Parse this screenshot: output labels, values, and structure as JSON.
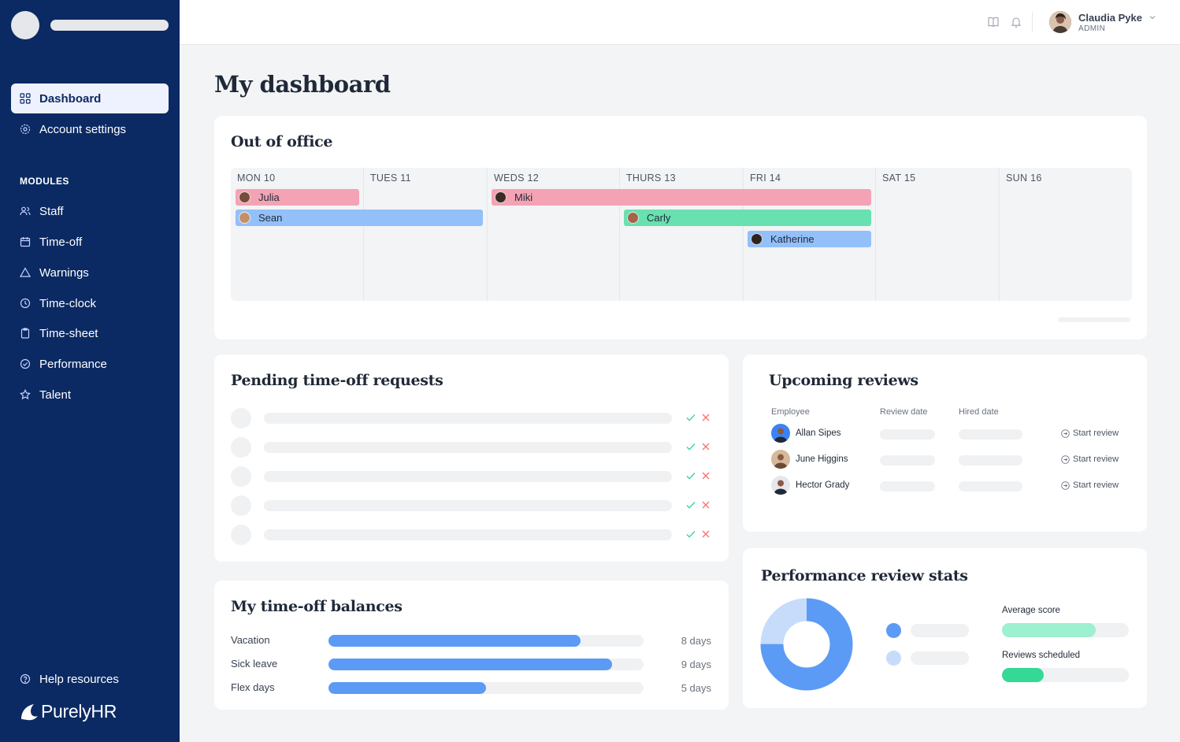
{
  "nav": {
    "dashboard": "Dashboard",
    "account_settings": "Account settings",
    "modules_label": "MODULES",
    "staff": "Staff",
    "time_off": "Time-off",
    "warnings": "Warnings",
    "time_clock": "Time-clock",
    "time_sheet": "Time-sheet",
    "performance": "Performance",
    "talent": "Talent",
    "help": "Help resources",
    "logo": "PurelyHR"
  },
  "user": {
    "name": "Claudia Pyke",
    "role": "ADMIN"
  },
  "page_title": "My dashboard",
  "out_of_office": {
    "title": "Out of office",
    "days": [
      "MON 10",
      "TUES 11",
      "WEDS 12",
      "THURS 13",
      "FRI 14",
      "SAT 15",
      "SUN 16"
    ],
    "events": [
      {
        "name": "Julia",
        "color": "#f4a3b4",
        "start_day": 0,
        "end_day": 0
      },
      {
        "name": "Sean",
        "color": "#93c0f9",
        "start_day": 0,
        "end_day": 1
      },
      {
        "name": "Miki",
        "color": "#f4a3b4",
        "start_day": 2,
        "end_day": 4
      },
      {
        "name": "Carly",
        "color": "#69e0b0",
        "start_day": 3,
        "end_day": 4
      },
      {
        "name": "Katherine",
        "color": "#93c0f9",
        "start_day": 4,
        "end_day": 4
      }
    ]
  },
  "pending": {
    "title": "Pending time-off requests",
    "row_count": 5
  },
  "balances": {
    "title": "My time-off balances",
    "items": [
      {
        "label": "Vacation",
        "days": "8 days",
        "fraction": 0.8
      },
      {
        "label": "Sick leave",
        "days": "9 days",
        "fraction": 0.9
      },
      {
        "label": "Flex days",
        "days": "5 days",
        "fraction": 0.5
      }
    ]
  },
  "reviews": {
    "title": "Upcoming reviews",
    "col_employee": "Employee",
    "col_review_date": "Review date",
    "col_hired_date": "Hired date",
    "action_label": "Start review",
    "employees": [
      {
        "name": "Allan Sipes"
      },
      {
        "name": "June Higgins"
      },
      {
        "name": "Hector Grady"
      }
    ]
  },
  "stats": {
    "title": "Performance review stats",
    "donut_fraction": 0.75,
    "average_label": "Average score",
    "average_fraction": 0.74,
    "scheduled_label": "Reviews scheduled",
    "scheduled_fraction": 0.33,
    "colors": {
      "primary": "#5b9bf5",
      "secondary": "#c7dcfb",
      "mint": "#9df0d0",
      "green": "#34d995"
    }
  }
}
